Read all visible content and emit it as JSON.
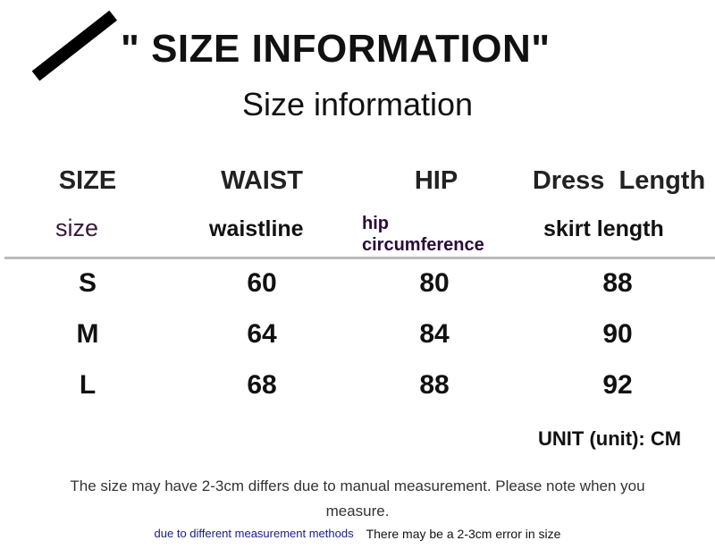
{
  "header": {
    "title": "\" SIZE INFORMATION\"",
    "subtitle": "Size information"
  },
  "columns": [
    {
      "label": "SIZE",
      "sublabel": "size"
    },
    {
      "label": "WAIST",
      "sublabel": "waistline"
    },
    {
      "label": "HIP",
      "sublabel_line1": "hip",
      "sublabel_line2": "circumference"
    },
    {
      "label": "Dress  Length",
      "sublabel": "skirt length"
    }
  ],
  "rows": [
    [
      "S",
      "60",
      "80",
      "88"
    ],
    [
      "M",
      "64",
      "84",
      "90"
    ],
    [
      "L",
      "68",
      "88",
      "92"
    ]
  ],
  "unit": "UNIT (unit): CM",
  "notes": {
    "line1": "The size may have 2-3cm differs due to manual measurement. Please note when you",
    "line2": "measure.",
    "small_blue": "due to different measurement methods",
    "small_black": "There may be a 2-3cm error in size"
  },
  "colors": {
    "sublabel_purple": "#3a1a3a",
    "blue_note": "#1a1a8a"
  }
}
